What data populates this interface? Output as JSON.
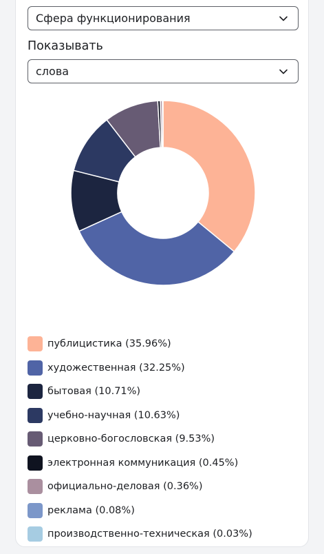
{
  "filters": {
    "sphere_select": {
      "value": "Сфера функционирования",
      "icon": "chevron-down-icon"
    },
    "show_label": "Показывать",
    "show_select": {
      "value": "слова",
      "icon": "chevron-down-icon"
    }
  },
  "chart_data": {
    "type": "pie",
    "variant": "donut",
    "title": "",
    "legend_position": "bottom",
    "slices": [
      {
        "label": "публицистика",
        "value": 35.96,
        "display": "публицистика (35.96%)",
        "color": "#fdb396"
      },
      {
        "label": "художественная",
        "value": 32.25,
        "display": "художественная (32.25%)",
        "color": "#5064a6"
      },
      {
        "label": "бытовая",
        "value": 10.71,
        "display": "бытовая (10.71%)",
        "color": "#1c2540"
      },
      {
        "label": "учебно-научная",
        "value": 10.63,
        "display": "учебно-научная (10.63%)",
        "color": "#2c3962"
      },
      {
        "label": "церковно-богословская",
        "value": 9.53,
        "display": "церковно-богословская (9.53%)",
        "color": "#675b74"
      },
      {
        "label": "электронная коммуникация",
        "value": 0.45,
        "display": "электронная коммуникация (0.45%)",
        "color": "#0f1320"
      },
      {
        "label": "официально-деловая",
        "value": 0.36,
        "display": "официально-деловая (0.36%)",
        "color": "#aa8f9f"
      },
      {
        "label": "реклама",
        "value": 0.08,
        "display": "реклама (0.08%)",
        "color": "#7c97c9"
      },
      {
        "label": "производственно-техническая",
        "value": 0.03,
        "display": "производственно-техническая (0.03%)",
        "color": "#a6cce2"
      }
    ]
  }
}
